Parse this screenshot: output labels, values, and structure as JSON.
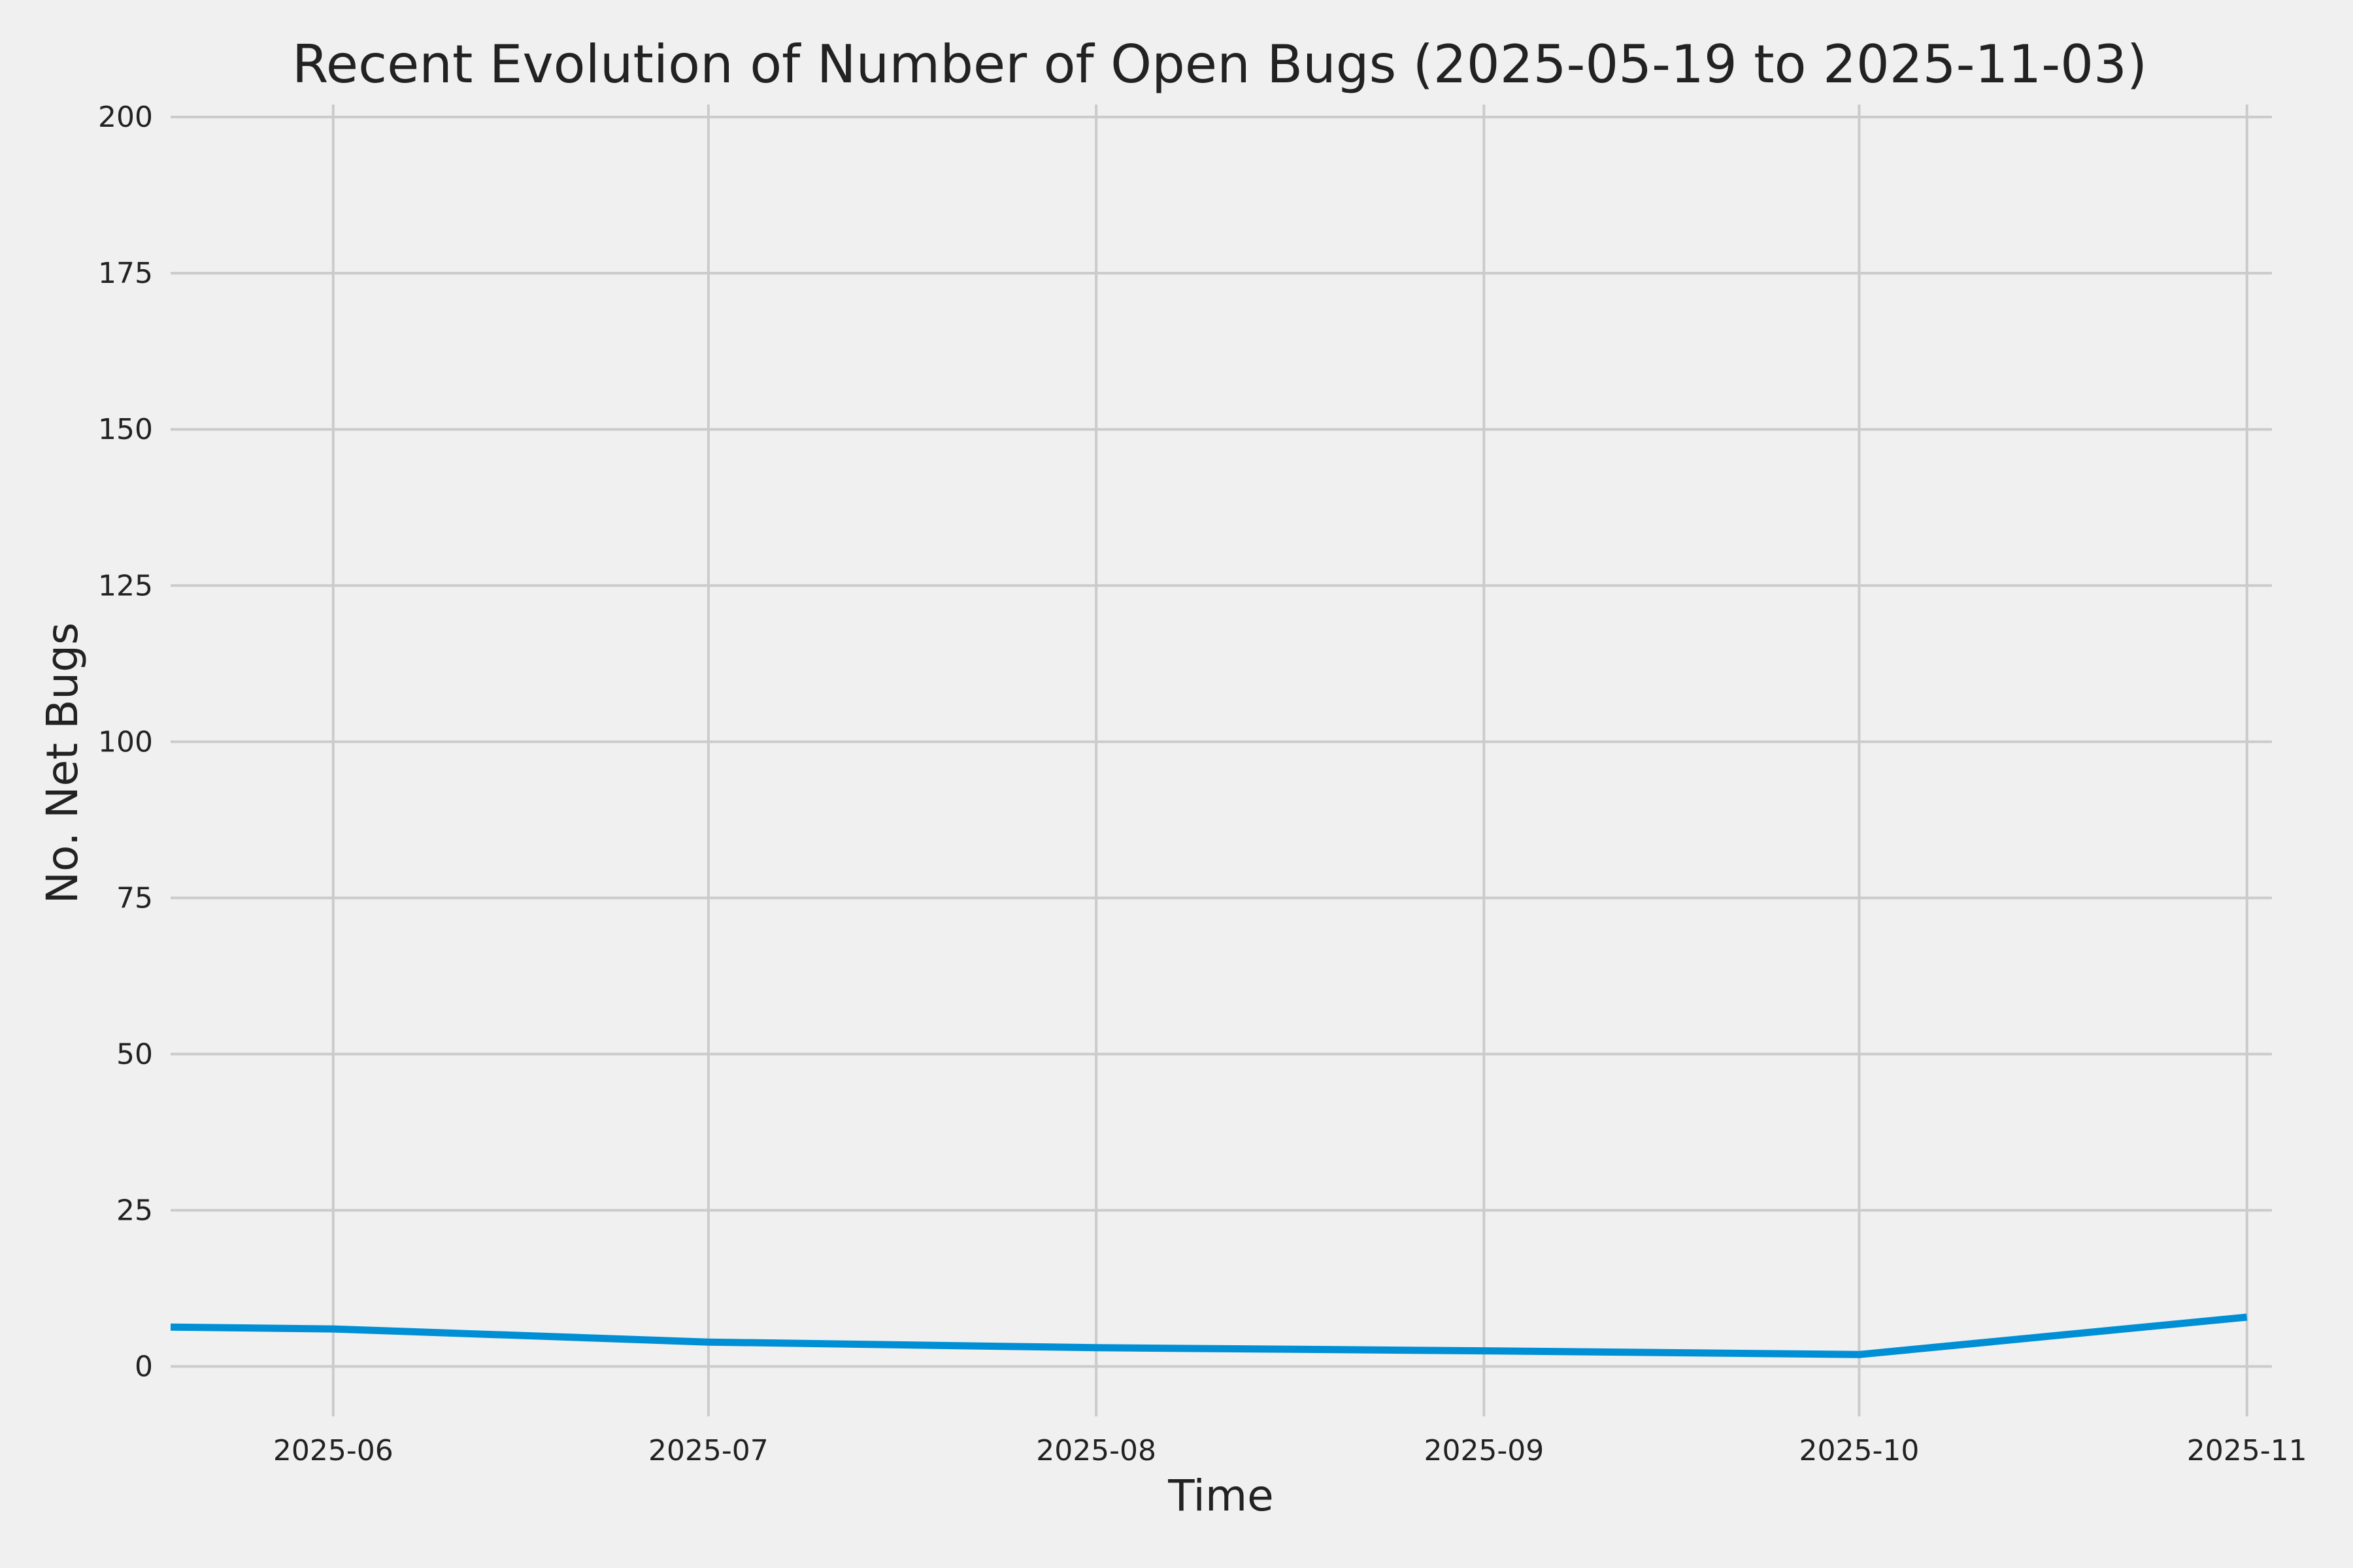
{
  "chart_data": {
    "type": "line",
    "title": "Recent Evolution of Number of Open Bugs (2025-05-19 to 2025-11-03)",
    "xlabel": "Time",
    "ylabel": "No. Net Bugs",
    "x_axis_type": "date",
    "xlim": [
      "2025-05-19",
      "2025-11-03"
    ],
    "ylim": [
      -8,
      202
    ],
    "x_ticks": [
      "2025-06",
      "2025-07",
      "2025-08",
      "2025-09",
      "2025-10",
      "2025-11"
    ],
    "x_tick_dates": [
      "2025-06-01",
      "2025-07-01",
      "2025-08-01",
      "2025-09-01",
      "2025-10-01",
      "2025-11-01"
    ],
    "y_ticks": [
      0,
      25,
      50,
      75,
      100,
      125,
      150,
      175,
      200
    ],
    "grid": true,
    "legend": "none",
    "series": [
      {
        "color": "#008fd5",
        "points": [
          {
            "x": "2025-05-19",
            "y": 6.3
          },
          {
            "x": "2025-06-01",
            "y": 6.0
          },
          {
            "x": "2025-07-01",
            "y": 3.9
          },
          {
            "x": "2025-08-01",
            "y": 3.0
          },
          {
            "x": "2025-09-01",
            "y": 2.5
          },
          {
            "x": "2025-10-01",
            "y": 1.9
          },
          {
            "x": "2025-11-01",
            "y": 7.9
          }
        ]
      }
    ]
  }
}
